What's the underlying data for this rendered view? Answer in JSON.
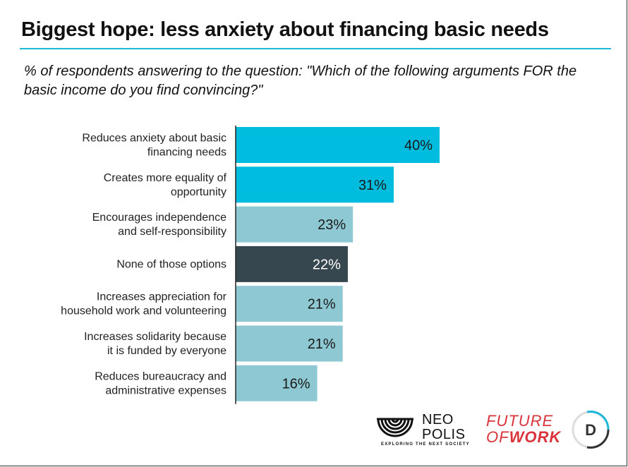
{
  "header": {
    "title": "Biggest hope: less anxiety about financing basic needs",
    "subtitle": "% of respondents answering to the question: \"Which of the following arguments FOR the basic income do you find convincing?\""
  },
  "chart_data": {
    "type": "bar",
    "orientation": "horizontal",
    "categories": [
      [
        "Reduces anxiety about basic",
        "financing needs"
      ],
      [
        "Creates more equality of",
        "opportunity"
      ],
      [
        "Encourages independence",
        "and self-responsibility"
      ],
      [
        "None of those options"
      ],
      [
        "Increases appreciation for",
        "household work and volunteering"
      ],
      [
        "Increases solidarity because",
        "it is funded by everyone"
      ],
      [
        "Reduces bureaucracy and",
        "administrative expenses"
      ]
    ],
    "values": [
      40,
      31,
      23,
      22,
      21,
      21,
      16
    ],
    "value_labels": [
      "40%",
      "31%",
      "23%",
      "22%",
      "21%",
      "21%",
      "16%"
    ],
    "bar_colors": [
      "#00bcdf",
      "#00bcdf",
      "#8ec9d3",
      "#37474f",
      "#8ec9d3",
      "#8ec9d3",
      "#8ec9d3"
    ],
    "value_label_colors": [
      "#1a1a1a",
      "#1a1a1a",
      "#1a1a1a",
      "#ffffff",
      "#1a1a1a",
      "#1a1a1a",
      "#1a1a1a"
    ],
    "xlim": [
      0,
      40
    ],
    "unit": "%",
    "grid": false
  },
  "logos": {
    "neopolis_line1": "NEO",
    "neopolis_line2": "POLIS",
    "neopolis_tagline": "EXPLORING THE NEXT SOCIETY",
    "fow_line1": "FUTURE",
    "fow_line2_a": "OF",
    "fow_line2_b": "WORK",
    "d_mark": "D"
  },
  "colors": {
    "accent": "#1fb8d9",
    "highlight_bar": "#00bcdf",
    "standard_bar": "#8ec9d3",
    "none_bar": "#37474f",
    "fow_red": "#d9333b"
  }
}
